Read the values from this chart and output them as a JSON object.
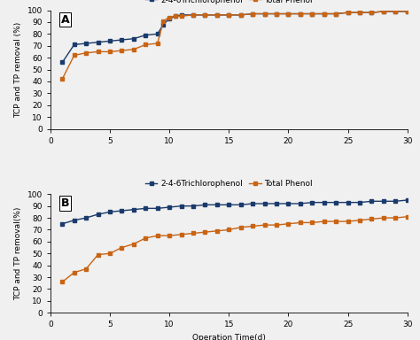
{
  "title_A": "A",
  "title_B": "B",
  "xlabel": "Operation Time(d)",
  "ylabel_A": "TCP and TP removal (%)",
  "ylabel_B": "TCP and TP removal(%)",
  "legend_labels": [
    "2-4-6Trichlorophenol",
    "Total Phenol"
  ],
  "tcp_color": "#1a3a6b",
  "tp_color": "#c86414",
  "A_tcp_x": [
    1,
    2,
    3,
    4,
    5,
    6,
    7,
    8,
    9,
    9.5,
    10,
    10.5,
    11,
    12,
    13,
    14,
    15,
    16,
    17,
    18,
    19,
    20,
    21,
    22,
    23,
    24,
    25,
    26,
    27,
    28,
    29,
    30
  ],
  "A_tcp_y": [
    56,
    71,
    72,
    73,
    74,
    75,
    76,
    79,
    80,
    88,
    93,
    95,
    96,
    96,
    96,
    96,
    96,
    96,
    97,
    97,
    97,
    97,
    97,
    97,
    97,
    97,
    98,
    98,
    98,
    99,
    99,
    99
  ],
  "A_tp_x": [
    1,
    2,
    3,
    4,
    5,
    6,
    7,
    8,
    9,
    9.5,
    10,
    10.5,
    11,
    12,
    13,
    14,
    15,
    16,
    17,
    18,
    19,
    20,
    21,
    22,
    23,
    24,
    25,
    26,
    27,
    28,
    29,
    30
  ],
  "A_tp_y": [
    42,
    62,
    64,
    65,
    65,
    66,
    67,
    71,
    72,
    91,
    94,
    95,
    95,
    96,
    96,
    96,
    96,
    96,
    97,
    97,
    97,
    97,
    97,
    97,
    97,
    97,
    98,
    98,
    98,
    99,
    99,
    99
  ],
  "B_tcp_x": [
    1,
    2,
    3,
    4,
    5,
    6,
    7,
    8,
    9,
    10,
    11,
    12,
    13,
    14,
    15,
    16,
    17,
    18,
    19,
    20,
    21,
    22,
    23,
    24,
    25,
    26,
    27,
    28,
    29,
    30
  ],
  "B_tcp_y": [
    75,
    78,
    80,
    83,
    85,
    86,
    87,
    88,
    88,
    89,
    90,
    90,
    91,
    91,
    91,
    91,
    92,
    92,
    92,
    92,
    92,
    93,
    93,
    93,
    93,
    93,
    94,
    94,
    94,
    95
  ],
  "B_tp_x": [
    1,
    2,
    3,
    4,
    5,
    6,
    7,
    8,
    9,
    10,
    11,
    12,
    13,
    14,
    15,
    16,
    17,
    18,
    19,
    20,
    21,
    22,
    23,
    24,
    25,
    26,
    27,
    28,
    29,
    30
  ],
  "B_tp_y": [
    26,
    34,
    37,
    49,
    50,
    55,
    58,
    63,
    65,
    65,
    66,
    67,
    68,
    69,
    70,
    72,
    73,
    74,
    74,
    75,
    76,
    76,
    77,
    77,
    77,
    78,
    79,
    80,
    80,
    81
  ],
  "ylim": [
    0,
    100
  ],
  "xlim": [
    0,
    30
  ],
  "xticks": [
    0,
    5,
    10,
    15,
    20,
    25,
    30
  ],
  "yticks": [
    0,
    10,
    20,
    30,
    40,
    50,
    60,
    70,
    80,
    90,
    100
  ],
  "markersize": 2.8,
  "linewidth": 1.0,
  "label_fontsize": 6.5,
  "tick_fontsize": 6.5,
  "legend_fontsize": 6.5,
  "bg_color": "#f0f0f0"
}
